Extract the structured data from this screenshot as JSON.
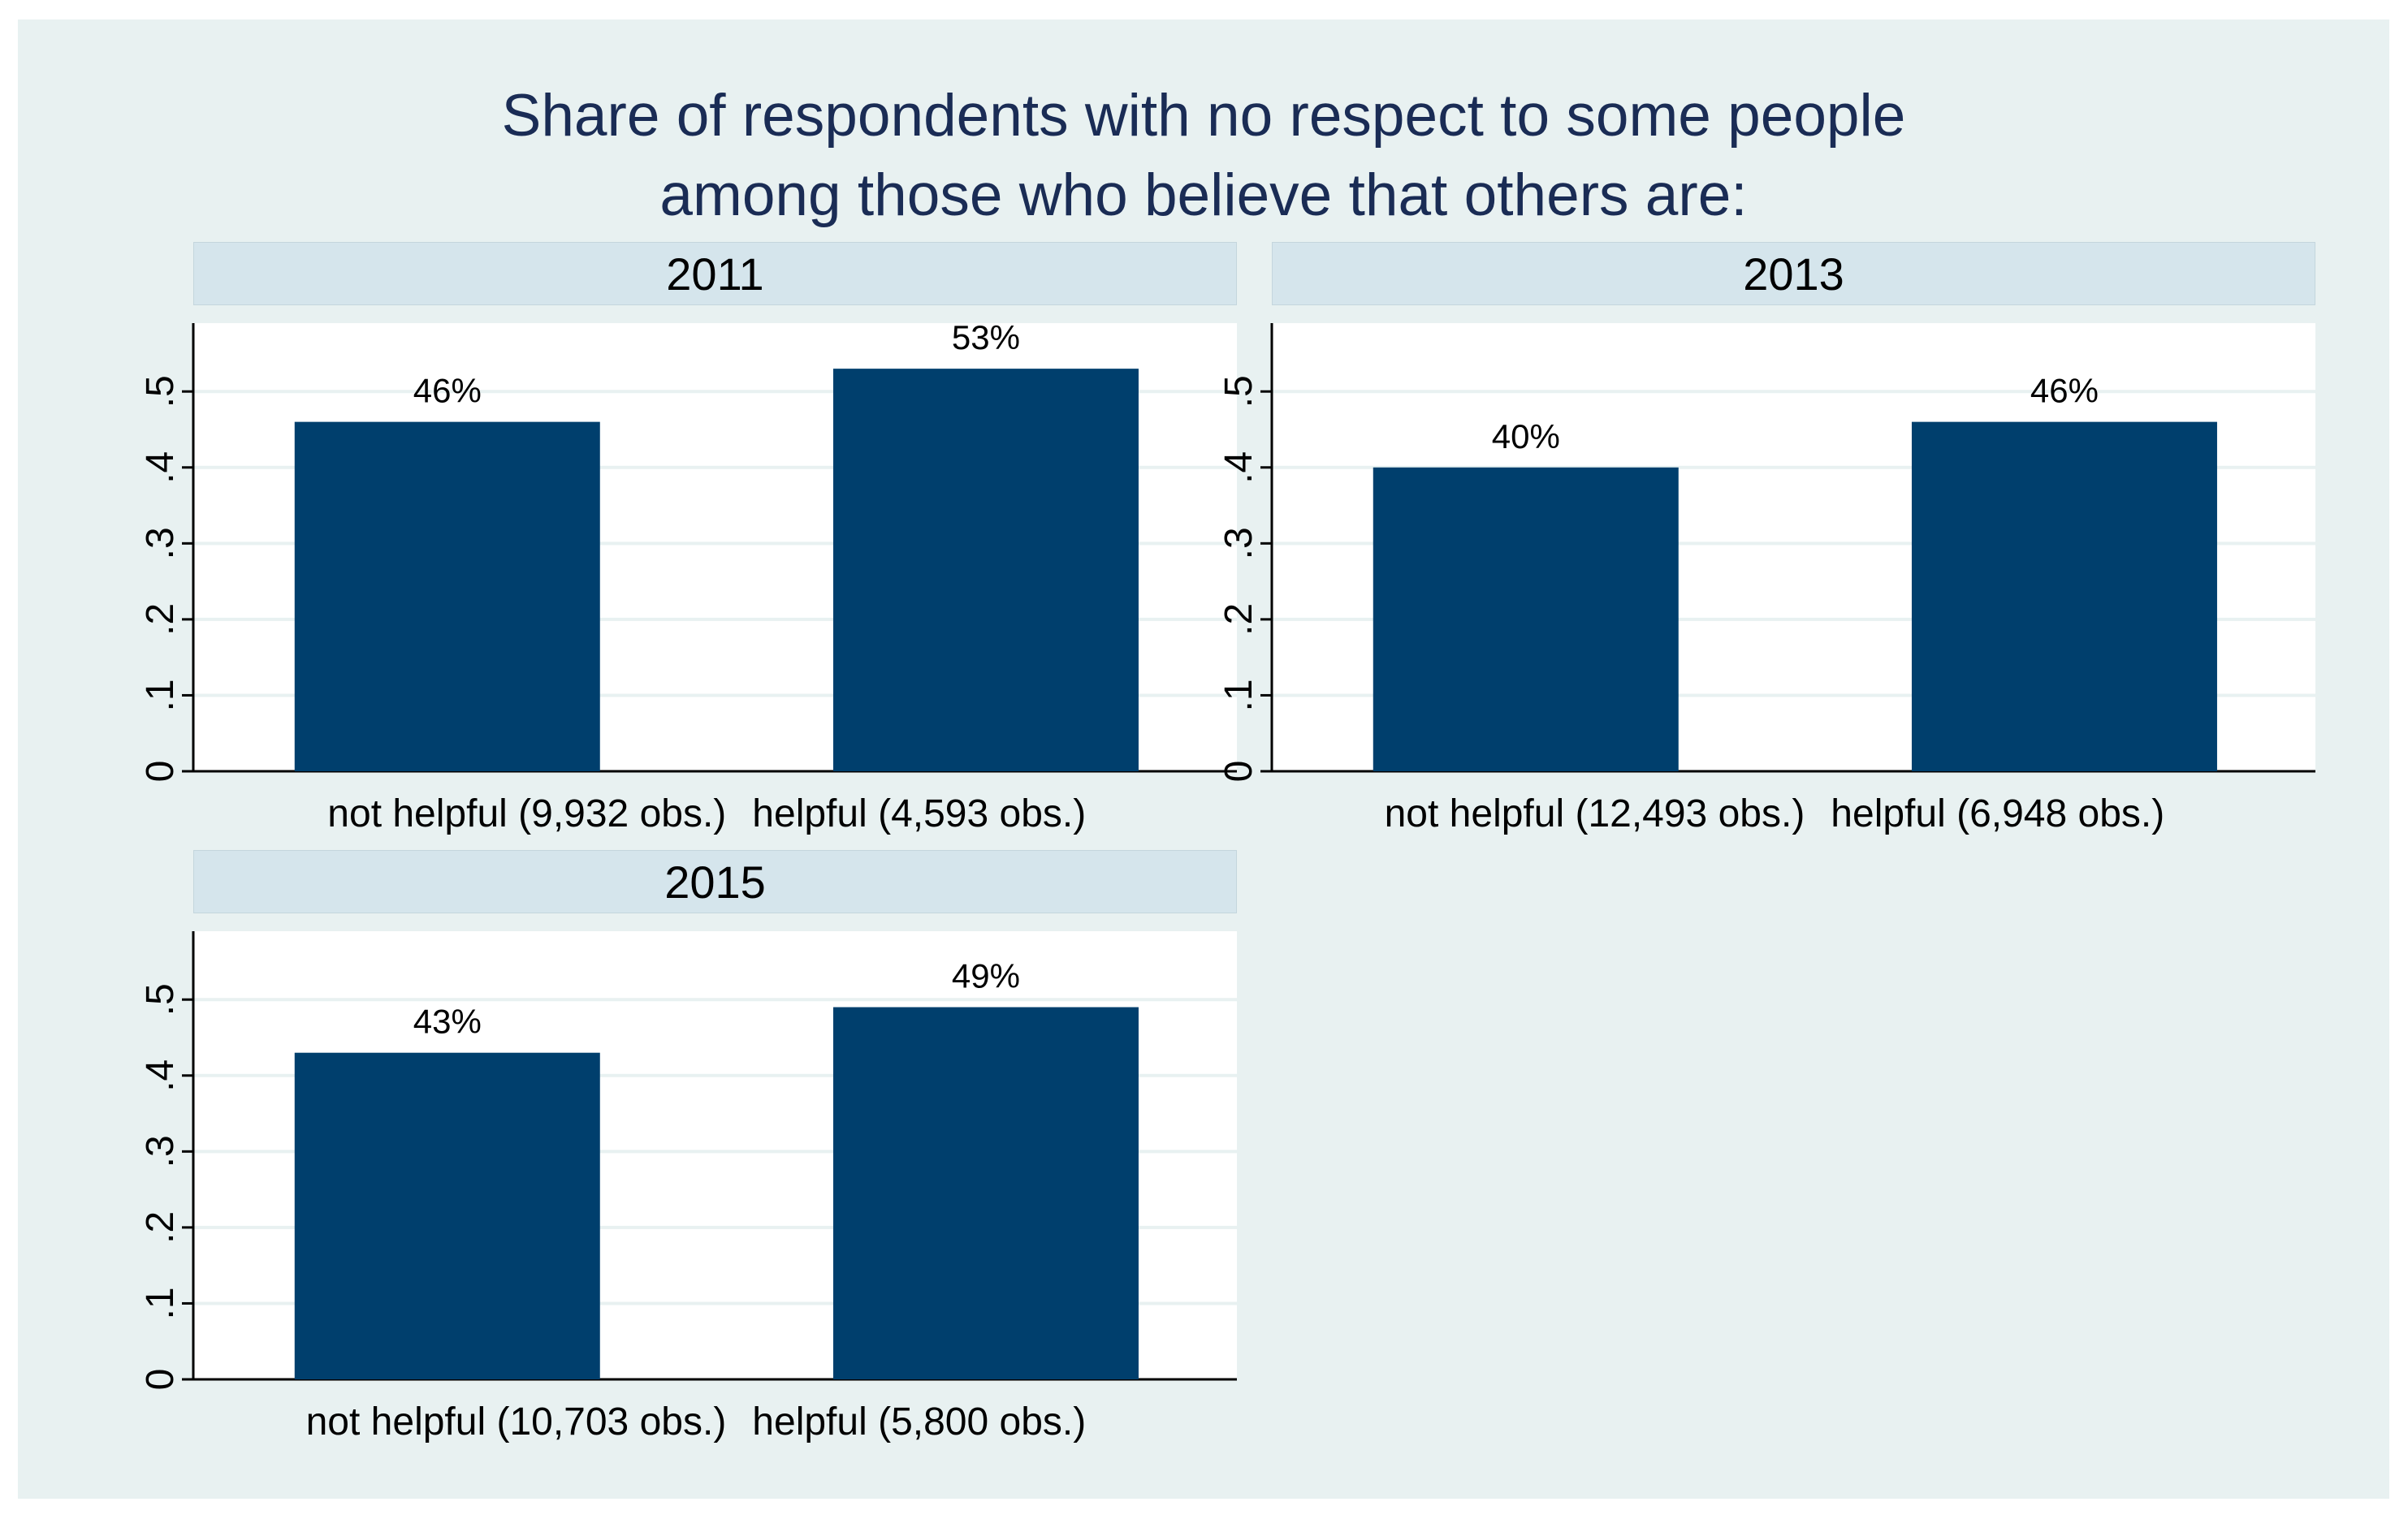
{
  "title": {
    "line1": "Share of respondents with no respect to some people",
    "line2": "among those who believe that others are:"
  },
  "colors": {
    "bar": "#003f6d",
    "strip": "#d5e5ec",
    "background": "#e8f1f1"
  },
  "chart_data": [
    {
      "type": "bar",
      "panel": "2011",
      "categories": [
        "not helpful (9,932 obs.)",
        "helpful (4,593 obs.)"
      ],
      "values": [
        0.46,
        0.53
      ],
      "labels": [
        "46%",
        "53%"
      ],
      "yticks": [
        "0",
        ".1",
        ".2",
        ".3",
        ".4",
        ".5"
      ],
      "ylim": [
        0,
        0.59
      ],
      "grid": true
    },
    {
      "type": "bar",
      "panel": "2013",
      "categories": [
        "not helpful (12,493 obs.)",
        "helpful (6,948 obs.)"
      ],
      "values": [
        0.4,
        0.46
      ],
      "labels": [
        "40%",
        "46%"
      ],
      "yticks": [
        "0",
        ".1",
        ".2",
        ".3",
        ".4",
        ".5"
      ],
      "ylim": [
        0,
        0.59
      ],
      "grid": true
    },
    {
      "type": "bar",
      "panel": "2015",
      "categories": [
        "not helpful (10,703 obs.)",
        "helpful (5,800 obs.)"
      ],
      "values": [
        0.43,
        0.49
      ],
      "labels": [
        "43%",
        "49%"
      ],
      "yticks": [
        "0",
        ".1",
        ".2",
        ".3",
        ".4",
        ".5"
      ],
      "ylim": [
        0,
        0.59
      ],
      "grid": true
    }
  ]
}
